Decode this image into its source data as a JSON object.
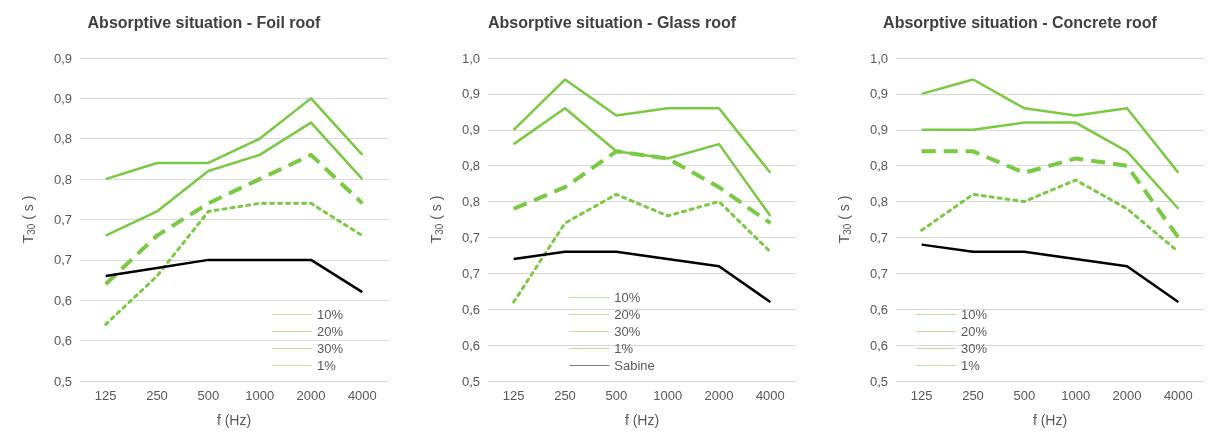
{
  "chart_data": [
    {
      "type": "line",
      "title": "Absorptive situation - Foil roof",
      "xlabel": "f (Hz)",
      "ylabel": "T$_{30}$ ( s )",
      "categories": [
        "125",
        "250",
        "500",
        "1000",
        "2000",
        "4000"
      ],
      "series": [
        {
          "name": "10%",
          "color": "#7ac943",
          "line_style": "solid",
          "values": [
            0.68,
            0.71,
            0.76,
            0.78,
            0.82,
            0.75
          ]
        },
        {
          "name": "20%",
          "color": "#7ac943",
          "line_style": "dashed",
          "values": [
            0.62,
            0.68,
            0.72,
            0.75,
            0.78,
            0.72
          ]
        },
        {
          "name": "30%",
          "color": "#7ac943",
          "line_style": "dotted",
          "values": [
            0.57,
            0.63,
            0.71,
            0.72,
            0.72,
            0.68
          ]
        },
        {
          "name": "1%",
          "color": "#7ac943",
          "line_style": "solid",
          "values": [
            0.75,
            0.77,
            0.77,
            0.8,
            0.85,
            0.78
          ]
        },
        {
          "color": "#000000",
          "line_style": "solid",
          "values": [
            0.63,
            0.64,
            0.65,
            0.65,
            0.65,
            0.61
          ]
        }
      ],
      "ylim": [
        0.5,
        0.9
      ],
      "yticks": [
        {
          "value": 0.5,
          "label": "0,5"
        },
        {
          "value": 0.55,
          "label": "0,6"
        },
        {
          "value": 0.6,
          "label": "0,6"
        },
        {
          "value": 0.65,
          "label": "0,7"
        },
        {
          "value": 0.7,
          "label": "0,7"
        },
        {
          "value": 0.75,
          "label": "0,8"
        },
        {
          "value": 0.8,
          "label": "0,8"
        },
        {
          "value": 0.85,
          "label": "0,9"
        },
        {
          "value": 0.9,
          "label": "0,9"
        }
      ],
      "grid": "y",
      "legend": "bottom right",
      "marker": "none"
    },
    {
      "type": "line",
      "title": "Absorptive situation - Glass roof",
      "xlabel": "f (Hz)",
      "ylabel": "T$_{30}$ ( s )",
      "categories": [
        "125",
        "250",
        "500",
        "1000",
        "2000",
        "4000"
      ],
      "series": [
        {
          "name": "10%",
          "color": "#7ac943",
          "line_style": "solid",
          "values": [
            0.83,
            0.88,
            0.82,
            0.81,
            0.83,
            0.73
          ]
        },
        {
          "name": "20%",
          "color": "#7ac943",
          "line_style": "dashed",
          "values": [
            0.74,
            0.77,
            0.82,
            0.81,
            0.77,
            0.72
          ]
        },
        {
          "name": "30%",
          "color": "#7ac943",
          "line_style": "dotted",
          "values": [
            0.61,
            0.72,
            0.76,
            0.73,
            0.75,
            0.68
          ]
        },
        {
          "name": "1%",
          "color": "#7ac943",
          "line_style": "solid",
          "values": [
            0.85,
            0.92,
            0.87,
            0.88,
            0.88,
            0.79
          ]
        },
        {
          "name": "Sabine",
          "color": "#000000",
          "line_style": "solid",
          "values": [
            0.67,
            0.68,
            0.68,
            0.67,
            0.66,
            0.61
          ]
        }
      ],
      "ylim": [
        0.5,
        0.95
      ],
      "yticks": [
        {
          "value": 0.5,
          "label": "0,5"
        },
        {
          "value": 0.55,
          "label": "0,6"
        },
        {
          "value": 0.6,
          "label": "0,6"
        },
        {
          "value": 0.65,
          "label": "0,7"
        },
        {
          "value": 0.7,
          "label": "0,7"
        },
        {
          "value": 0.75,
          "label": "0,8"
        },
        {
          "value": 0.8,
          "label": "0,8"
        },
        {
          "value": 0.85,
          "label": "0,9"
        },
        {
          "value": 0.9,
          "label": "0,9"
        },
        {
          "value": 0.95,
          "label": "1,0"
        }
      ],
      "grid": "y",
      "legend": "bottom",
      "marker": "none"
    },
    {
      "type": "line",
      "title": "Absorptive situation - Concrete roof",
      "xlabel": "f (Hz)",
      "ylabel": "T$_{30}$ ( s )",
      "categories": [
        "125",
        "250",
        "500",
        "1000",
        "2000",
        "4000"
      ],
      "series": [
        {
          "name": "10%",
          "color": "#7ac943",
          "line_style": "solid",
          "values": [
            0.85,
            0.85,
            0.86,
            0.86,
            0.82,
            0.74
          ]
        },
        {
          "name": "20%",
          "color": "#7ac943",
          "line_style": "dashed",
          "values": [
            0.82,
            0.82,
            0.79,
            0.81,
            0.8,
            0.7
          ]
        },
        {
          "name": "30%",
          "color": "#7ac943",
          "line_style": "dotted",
          "values": [
            0.71,
            0.76,
            0.75,
            0.78,
            0.74,
            0.68
          ]
        },
        {
          "name": "1%",
          "color": "#7ac943",
          "line_style": "solid",
          "values": [
            0.9,
            0.92,
            0.88,
            0.87,
            0.88,
            0.79
          ]
        },
        {
          "color": "#000000",
          "line_style": "solid",
          "values": [
            0.69,
            0.68,
            0.68,
            0.67,
            0.66,
            0.61
          ]
        }
      ],
      "ylim": [
        0.5,
        0.95
      ],
      "yticks": [
        {
          "value": 0.5,
          "label": "0,5"
        },
        {
          "value": 0.55,
          "label": "0,6"
        },
        {
          "value": 0.6,
          "label": "0,6"
        },
        {
          "value": 0.65,
          "label": "0,7"
        },
        {
          "value": 0.7,
          "label": "0,7"
        },
        {
          "value": 0.75,
          "label": "0,8"
        },
        {
          "value": 0.8,
          "label": "0,8"
        },
        {
          "value": 0.85,
          "label": "0,9"
        },
        {
          "value": 0.9,
          "label": "0,9"
        },
        {
          "value": 0.95,
          "label": "1,0"
        }
      ],
      "grid": "y",
      "legend": "bottom left",
      "marker": "none"
    }
  ]
}
